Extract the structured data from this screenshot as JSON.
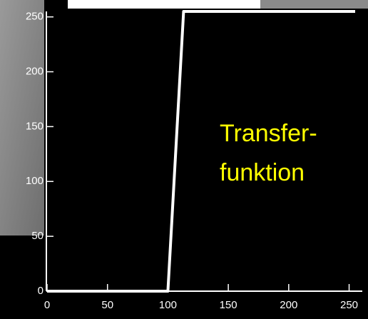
{
  "chart_data": {
    "type": "line",
    "x": [
      0,
      100,
      113,
      255
    ],
    "series": [
      {
        "color": "#ffffff",
        "values": [
          0,
          0,
          255,
          255
        ]
      }
    ],
    "xlim": [
      0,
      255
    ],
    "ylim": [
      0,
      255
    ],
    "xticks": [
      0,
      50,
      100,
      150,
      200,
      250
    ],
    "yticks": [
      0,
      50,
      100,
      150,
      200,
      250
    ],
    "annotation": [
      "Transfer-",
      "funktion"
    ]
  }
}
